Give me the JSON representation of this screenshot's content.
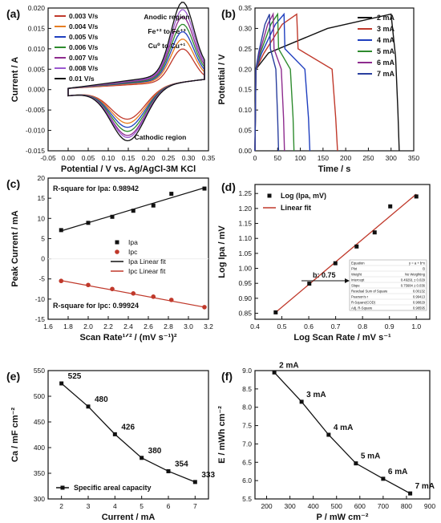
{
  "chart_data": [
    {
      "panel": "(a)",
      "type": "line",
      "xlabel": "Potential / V vs. Ag/AgCl-3M KCl",
      "ylabel": "Current / A",
      "xlim": [
        -0.05,
        0.35
      ],
      "ylim": [
        -0.015,
        0.02
      ],
      "xticks": [
        "-0.05",
        "0.00",
        "0.05",
        "0.10",
        "0.15",
        "0.20",
        "0.25",
        "0.30",
        "0.35"
      ],
      "yticks": [
        "-0.015",
        "-0.010",
        "-0.005",
        "0.000",
        "0.005",
        "0.010",
        "0.015",
        "0.020"
      ],
      "legend_position": "top-left",
      "annotations": [
        "Anodic region",
        "Fe⁺² to Fe⁺³",
        "Cu⁰ to Cu⁺¹",
        "Cathodic region"
      ],
      "series": [
        {
          "name": "0.003 V/s",
          "color": "#c0392b",
          "ia": 0.008,
          "ic": -0.0075
        },
        {
          "name": "0.004 V/s",
          "color": "#e67e22",
          "ia": 0.01,
          "ic": -0.0085
        },
        {
          "name": "0.005 V/s",
          "color": "#1f3fbf",
          "ia": 0.0115,
          "ic": -0.0095
        },
        {
          "name": "0.006 V/s",
          "color": "#2e8b2e",
          "ia": 0.013,
          "ic": -0.0105
        },
        {
          "name": "0.007 V/s",
          "color": "#8e2c8e",
          "ia": 0.0145,
          "ic": -0.0115
        },
        {
          "name": "0.008 V/s",
          "color": "#9b59d0",
          "ia": 0.016,
          "ic": -0.012
        },
        {
          "name": "0.01 V/s",
          "color": "#111111",
          "ia": 0.0175,
          "ic": -0.0128
        }
      ]
    },
    {
      "panel": "(b)",
      "type": "line",
      "xlabel": "Time / s",
      "ylabel": "Potential / V",
      "xlim": [
        0,
        350
      ],
      "ylim": [
        0.0,
        0.35
      ],
      "xticks": [
        "0",
        "50",
        "100",
        "150",
        "200",
        "250",
        "300",
        "350"
      ],
      "yticks": [
        "0.00",
        "0.05",
        "0.10",
        "0.15",
        "0.20",
        "0.25",
        "0.30",
        "0.35"
      ],
      "legend_position": "top-right",
      "series": [
        {
          "name": "2 mA",
          "color": "#111111",
          "x": [
            0,
            2,
            30,
            160,
            300,
            310,
            315,
            318
          ],
          "y": [
            0.0,
            0.2,
            0.24,
            0.3,
            0.335,
            0.23,
            0.1,
            0.0
          ]
        },
        {
          "name": "3 mA",
          "color": "#c0392b",
          "x": [
            0,
            2,
            20,
            60,
            92,
            95,
            170,
            178,
            182
          ],
          "y": [
            0.0,
            0.2,
            0.24,
            0.31,
            0.335,
            0.25,
            0.2,
            0.08,
            0.0
          ]
        },
        {
          "name": "4 mA",
          "color": "#1f3fbf",
          "x": [
            0,
            2,
            15,
            45,
            64,
            66,
            110,
            118,
            121
          ],
          "y": [
            0.0,
            0.2,
            0.24,
            0.31,
            0.335,
            0.25,
            0.2,
            0.08,
            0.0
          ]
        },
        {
          "name": "5 mA",
          "color": "#2e8b2e",
          "x": [
            0,
            2,
            12,
            35,
            50,
            52,
            78,
            84,
            86
          ],
          "y": [
            0.0,
            0.2,
            0.24,
            0.31,
            0.335,
            0.25,
            0.2,
            0.08,
            0.0
          ]
        },
        {
          "name": "6 mA",
          "color": "#8e2c8e",
          "x": [
            0,
            2,
            10,
            28,
            40,
            42,
            58,
            63,
            65
          ],
          "y": [
            0.0,
            0.2,
            0.24,
            0.31,
            0.335,
            0.25,
            0.2,
            0.08,
            0.0
          ]
        },
        {
          "name": "7 mA",
          "color": "#2a3f9f",
          "x": [
            0,
            2,
            8,
            22,
            32,
            34,
            46,
            50,
            52
          ],
          "y": [
            0.0,
            0.2,
            0.24,
            0.31,
            0.335,
            0.25,
            0.2,
            0.08,
            0.0
          ]
        }
      ]
    },
    {
      "panel": "(c)",
      "type": "scatter",
      "xlabel": "Scan Rate¹ᐟ² / (mV s⁻¹)²",
      "ylabel": "Peak Current / mA",
      "xlim": [
        1.6,
        3.2
      ],
      "ylim": [
        -15,
        20
      ],
      "xticks": [
        "1.6",
        "1.8",
        "2.0",
        "2.2",
        "2.4",
        "2.6",
        "2.8",
        "3.0",
        "3.2"
      ],
      "yticks": [
        "-15",
        "-10",
        "-5",
        "0",
        "5",
        "10",
        "15",
        "20"
      ],
      "legend_position": "center-right",
      "annotations": [
        "R-square for Ipa: 0.98942",
        "R-square for Ipc: 0.99924"
      ],
      "series": [
        {
          "name": "Ipa",
          "color": "#111111",
          "x": [
            1.73,
            2.0,
            2.24,
            2.45,
            2.65,
            2.83,
            3.16
          ],
          "y": [
            7.1,
            8.9,
            10.4,
            11.9,
            13.2,
            16.1,
            17.4
          ]
        },
        {
          "name": "Ipc",
          "color": "#c0392b",
          "x": [
            1.73,
            2.0,
            2.24,
            2.45,
            2.65,
            2.83,
            3.16
          ],
          "y": [
            -5.5,
            -6.5,
            -7.5,
            -8.6,
            -9.4,
            -10.2,
            -12.0
          ]
        }
      ],
      "fits": [
        {
          "name": "Ipa Linear fit",
          "color": "#111111",
          "x": [
            1.73,
            3.16
          ],
          "y": [
            6.9,
            17.6
          ]
        },
        {
          "name": "Ipc Linear fit",
          "color": "#c0392b",
          "x": [
            1.73,
            3.16
          ],
          "y": [
            -5.4,
            -12.0
          ]
        }
      ]
    },
    {
      "panel": "(d)",
      "type": "scatter",
      "xlabel": "Log Scan Rate / mV s⁻¹",
      "ylabel": "Log Ipa / mV",
      "xlim": [
        0.4,
        1.05
      ],
      "ylim": [
        0.83,
        1.28
      ],
      "xticks": [
        "0.4",
        "0.5",
        "0.6",
        "0.7",
        "0.8",
        "0.9",
        "1.0"
      ],
      "yticks": [
        "0.85",
        "0.90",
        "0.95",
        "1.00",
        "1.05",
        "1.10",
        "1.15",
        "1.20",
        "1.25"
      ],
      "legend_position": "top-left",
      "annotations": [
        "b: 0.75"
      ],
      "series": [
        {
          "name": "Log (Ipa, mV)",
          "color": "#111111",
          "x": [
            0.477,
            0.602,
            0.699,
            0.778,
            0.845,
            0.903,
            1.0
          ],
          "y": [
            0.853,
            0.949,
            1.017,
            1.073,
            1.12,
            1.207,
            1.24
          ]
        }
      ],
      "fits": [
        {
          "name": "Linear fit",
          "color": "#c0392b",
          "x": [
            0.477,
            1.0
          ],
          "y": [
            0.853,
            1.248
          ]
        }
      ],
      "stats_table": [
        [
          "Equation",
          "y = a + b*x"
        ],
        [
          "Plot",
          "B"
        ],
        [
          "Weight",
          "No Weighting"
        ],
        [
          "Intercept",
          "0.49291 ± 0.029"
        ],
        [
          "Slope",
          "0.75684 ± 0.036"
        ],
        [
          "Residual Sum of Square",
          "0.00132"
        ],
        [
          "Pearson's r",
          "0.99413"
        ],
        [
          "R-Square(COD)",
          "0.98829"
        ],
        [
          "Adj. R-Square",
          "0.98595"
        ]
      ]
    },
    {
      "panel": "(e)",
      "type": "line",
      "xlabel": "Current / mA",
      "ylabel": "Ca / mF cm⁻²",
      "xlim": [
        1.5,
        7.5
      ],
      "ylim": [
        300,
        550
      ],
      "xticks": [
        "2",
        "3",
        "4",
        "5",
        "6",
        "7"
      ],
      "yticks": [
        "300",
        "350",
        "400",
        "450",
        "500",
        "550"
      ],
      "legend_position": "bottom-left",
      "series": [
        {
          "name": "Specific areal capacity",
          "color": "#111111",
          "x": [
            2,
            3,
            4,
            5,
            6,
            7
          ],
          "y": [
            525,
            480,
            426,
            380,
            354,
            333
          ],
          "labels": [
            "525",
            "480",
            "426",
            "380",
            "354",
            "333"
          ]
        }
      ]
    },
    {
      "panel": "(f)",
      "type": "line",
      "xlabel": "P / mW cm⁻²",
      "ylabel": "E / mWh cm⁻²",
      "xlim": [
        150,
        900
      ],
      "ylim": [
        5.5,
        9.0
      ],
      "xticks": [
        "200",
        "300",
        "400",
        "500",
        "600",
        "700",
        "800",
        "900"
      ],
      "yticks": [
        "5.5",
        "6.0",
        "6.5",
        "7.0",
        "7.5",
        "8.0",
        "8.5",
        "9.0"
      ],
      "series": [
        {
          "name": "",
          "color": "#111111",
          "x": [
            233,
            350,
            466,
            583,
            700,
            816
          ],
          "y": [
            8.95,
            8.15,
            7.25,
            6.47,
            6.05,
            5.65
          ],
          "labels": [
            "2 mA",
            "3 mA",
            "4 mA",
            "5 mA",
            "6 mA",
            "7 mA"
          ]
        }
      ]
    }
  ]
}
